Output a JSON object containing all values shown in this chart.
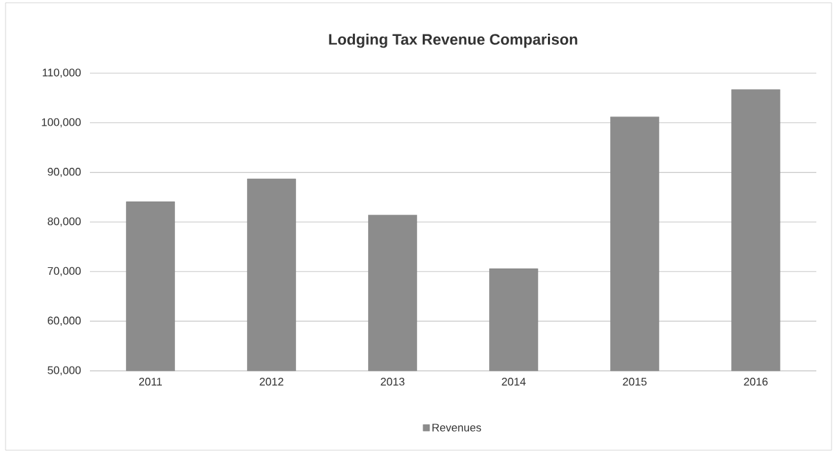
{
  "chart_data": {
    "type": "bar",
    "title": "Lodging Tax Revenue Comparison",
    "categories": [
      "2011",
      "2012",
      "2013",
      "2014",
      "2015",
      "2016"
    ],
    "series": [
      {
        "name": "Revenues",
        "color": "#8c8c8c",
        "values": [
          84100,
          88700,
          81400,
          70600,
          101200,
          106700
        ]
      }
    ],
    "ylim": [
      50000,
      110000
    ],
    "yticks": [
      {
        "value": 50000,
        "label": "50,000"
      },
      {
        "value": 60000,
        "label": "60,000"
      },
      {
        "value": 70000,
        "label": "70,000"
      },
      {
        "value": 80000,
        "label": "80,000"
      },
      {
        "value": 90000,
        "label": "90,000"
      },
      {
        "value": 100000,
        "label": "100,000"
      },
      {
        "value": 110000,
        "label": "110,000"
      }
    ],
    "grid": "y",
    "legend": "bottom"
  }
}
